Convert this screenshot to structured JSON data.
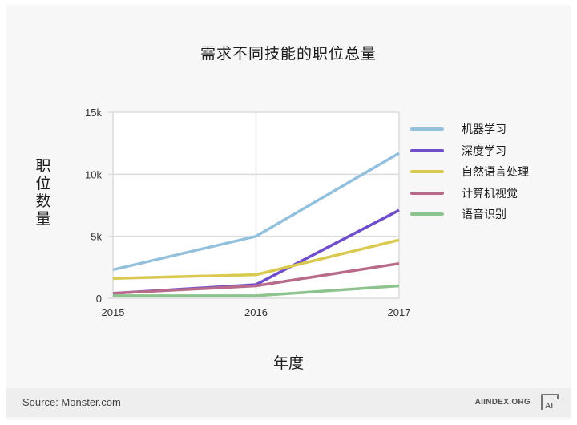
{
  "title": "需求不同技能的职位总量",
  "ylabel": "职位数量",
  "xlabel": "年度",
  "footer": {
    "source": "Source: Monster.com",
    "site": "AIINDEX.ORG",
    "logo_icon": "ai-index-logo-icon"
  },
  "chart_data": {
    "type": "line",
    "title": "需求不同技能的职位总量",
    "xlabel": "年度",
    "ylabel": "职位数量",
    "x": [
      "2015",
      "2016",
      "2017"
    ],
    "ylim": [
      0,
      15000
    ],
    "yticks": [
      0,
      5000,
      10000,
      15000
    ],
    "ytick_labels": [
      "0",
      "5k",
      "10k",
      "15k"
    ],
    "grid": true,
    "legend_position": "right",
    "series": [
      {
        "name": "机器学习",
        "color": "#93c0dd",
        "values": [
          2300,
          5000,
          11700
        ]
      },
      {
        "name": "深度学习",
        "color": "#6f4fc9",
        "values": [
          400,
          1100,
          7100
        ]
      },
      {
        "name": "自然语言处理",
        "color": "#d9c94f",
        "values": [
          1600,
          1900,
          4700
        ]
      },
      {
        "name": "计算机视觉",
        "color": "#b86a8a",
        "values": [
          400,
          1000,
          2800
        ]
      },
      {
        "name": "语音识别",
        "color": "#8dc48d",
        "values": [
          200,
          200,
          1000
        ]
      }
    ]
  }
}
